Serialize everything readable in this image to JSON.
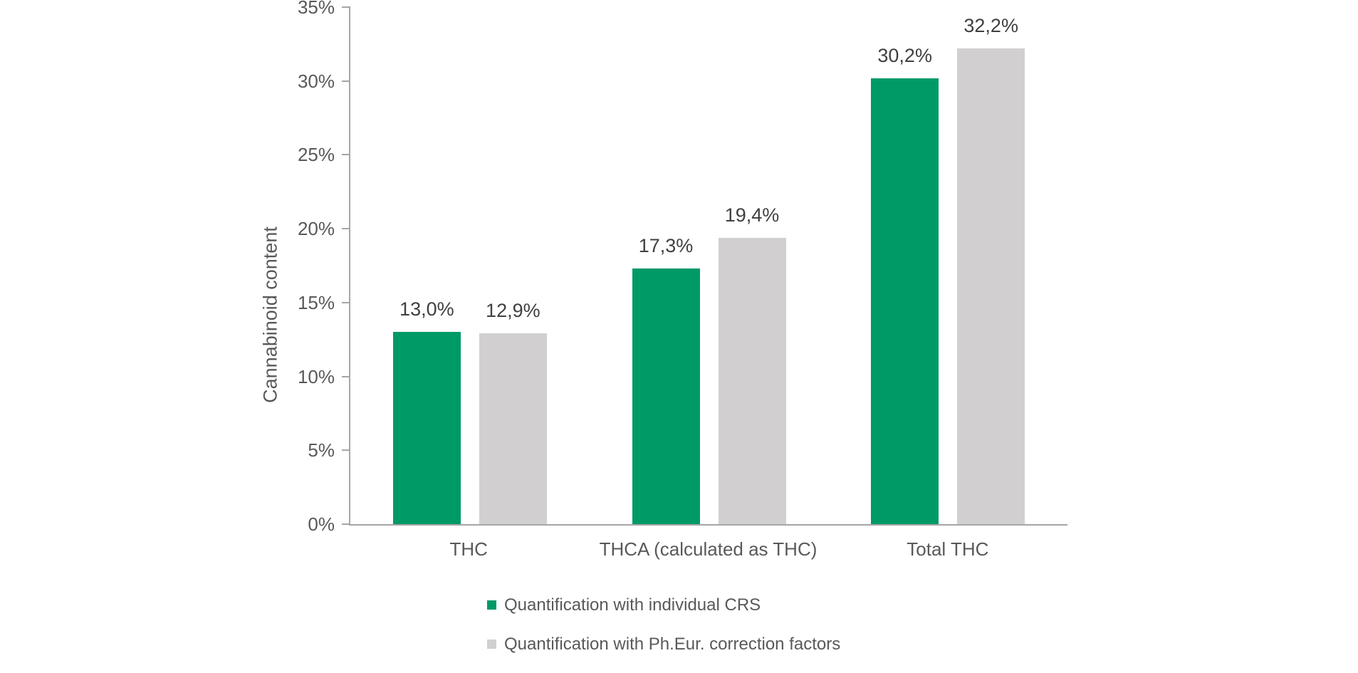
{
  "chart_data": {
    "type": "bar",
    "title": "",
    "ylabel": "Cannabinoid content",
    "xlabel": "",
    "ylim": [
      0,
      35
    ],
    "ytick_step": 5,
    "yticks_top_to_bottom": [
      "35%",
      "30%",
      "25%",
      "20%",
      "15%",
      "10%",
      "5%",
      "0%"
    ],
    "grid": false,
    "legend_position": "bottom-left",
    "categories": [
      "THC",
      "THCA (calculated as THC)",
      "Total THC"
    ],
    "series": [
      {
        "name": "Quantification with individual CRS",
        "color": "#009A66",
        "values": [
          13.0,
          17.3,
          30.2
        ],
        "labels": [
          "13,0%",
          "17,3%",
          "30,2%"
        ]
      },
      {
        "name": "Quantification with Ph.Eur. correction factors",
        "color": "#D1CFCF",
        "values": [
          12.9,
          19.4,
          32.2
        ],
        "labels": [
          "12,9%",
          "19,4%",
          "32,2%"
        ]
      }
    ],
    "colors": {
      "axis_line": "#A6A6A6",
      "tick_text": "#595959",
      "data_label_text": "#404040",
      "legend_text": "#595959",
      "background": "#FFFFFF"
    }
  }
}
